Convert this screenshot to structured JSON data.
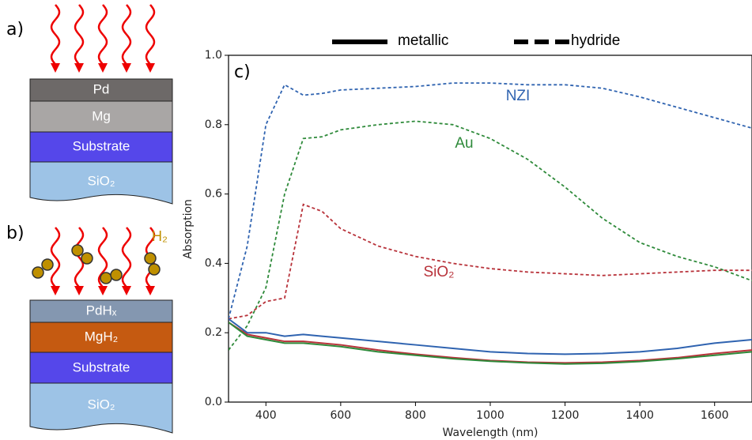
{
  "chart_data": {
    "type": "line",
    "panel_label": "c)",
    "x_label": "Wavelength (nm)",
    "y_label": "Absorption",
    "x": [
      300,
      350,
      400,
      450,
      500,
      550,
      600,
      700,
      800,
      900,
      1000,
      1100,
      1200,
      1300,
      1400,
      1500,
      1600,
      1700
    ],
    "legend": [
      {
        "label": "metallic",
        "dashed": false
      },
      {
        "label": "hydride",
        "dashed": true
      }
    ],
    "series": [
      {
        "name": "NZI",
        "color": "#2f63b0",
        "dashed": true,
        "values": [
          0.24,
          0.45,
          0.8,
          0.915,
          0.885,
          0.89,
          0.9,
          0.905,
          0.91,
          0.92,
          0.92,
          0.915,
          0.915,
          0.905,
          0.88,
          0.85,
          0.82,
          0.79
        ]
      },
      {
        "name": "Au",
        "color": "#2e8a3a",
        "dashed": true,
        "values": [
          0.15,
          0.22,
          0.33,
          0.6,
          0.76,
          0.765,
          0.785,
          0.8,
          0.81,
          0.8,
          0.76,
          0.7,
          0.62,
          0.53,
          0.46,
          0.42,
          0.39,
          0.35
        ]
      },
      {
        "name": "SiO₂",
        "color": "#b8323a",
        "dashed": true,
        "values": [
          0.24,
          0.25,
          0.29,
          0.3,
          0.57,
          0.55,
          0.5,
          0.45,
          0.42,
          0.4,
          0.385,
          0.375,
          0.37,
          0.365,
          0.37,
          0.375,
          0.38,
          0.38
        ]
      },
      {
        "color": "#2f63b0",
        "dashed": false,
        "values": [
          0.24,
          0.2,
          0.2,
          0.19,
          0.195,
          0.19,
          0.185,
          0.175,
          0.165,
          0.155,
          0.145,
          0.14,
          0.138,
          0.14,
          0.145,
          0.155,
          0.17,
          0.18
        ]
      },
      {
        "color": "#b8323a",
        "dashed": false,
        "values": [
          0.23,
          0.195,
          0.185,
          0.175,
          0.175,
          0.17,
          0.165,
          0.15,
          0.138,
          0.128,
          0.12,
          0.115,
          0.113,
          0.115,
          0.12,
          0.128,
          0.14,
          0.15
        ]
      },
      {
        "color": "#2e8a3a",
        "dashed": false,
        "values": [
          0.23,
          0.19,
          0.18,
          0.17,
          0.17,
          0.165,
          0.16,
          0.145,
          0.135,
          0.125,
          0.118,
          0.113,
          0.11,
          0.112,
          0.117,
          0.125,
          0.135,
          0.145
        ]
      }
    ],
    "xlim": [
      300,
      1700
    ],
    "xticks": [
      400,
      600,
      800,
      1000,
      1200,
      1400,
      1600
    ],
    "ylim": [
      0,
      1
    ],
    "yticks": [
      {
        "value": 0,
        "label": "0.0"
      },
      0.2,
      0.4,
      0.6,
      0.8,
      {
        "value": 1,
        "label": "1.0"
      }
    ]
  },
  "diagram": {
    "panel_a": {
      "label": "a)",
      "layers": [
        "Pd",
        "Mg",
        "Substrate",
        "SiO₂"
      ]
    },
    "panel_b": {
      "label": "b)",
      "layers": [
        "PdHₓ",
        "MgH₂",
        "Substrate",
        "SiO₂"
      ],
      "gas": "H₂"
    }
  }
}
